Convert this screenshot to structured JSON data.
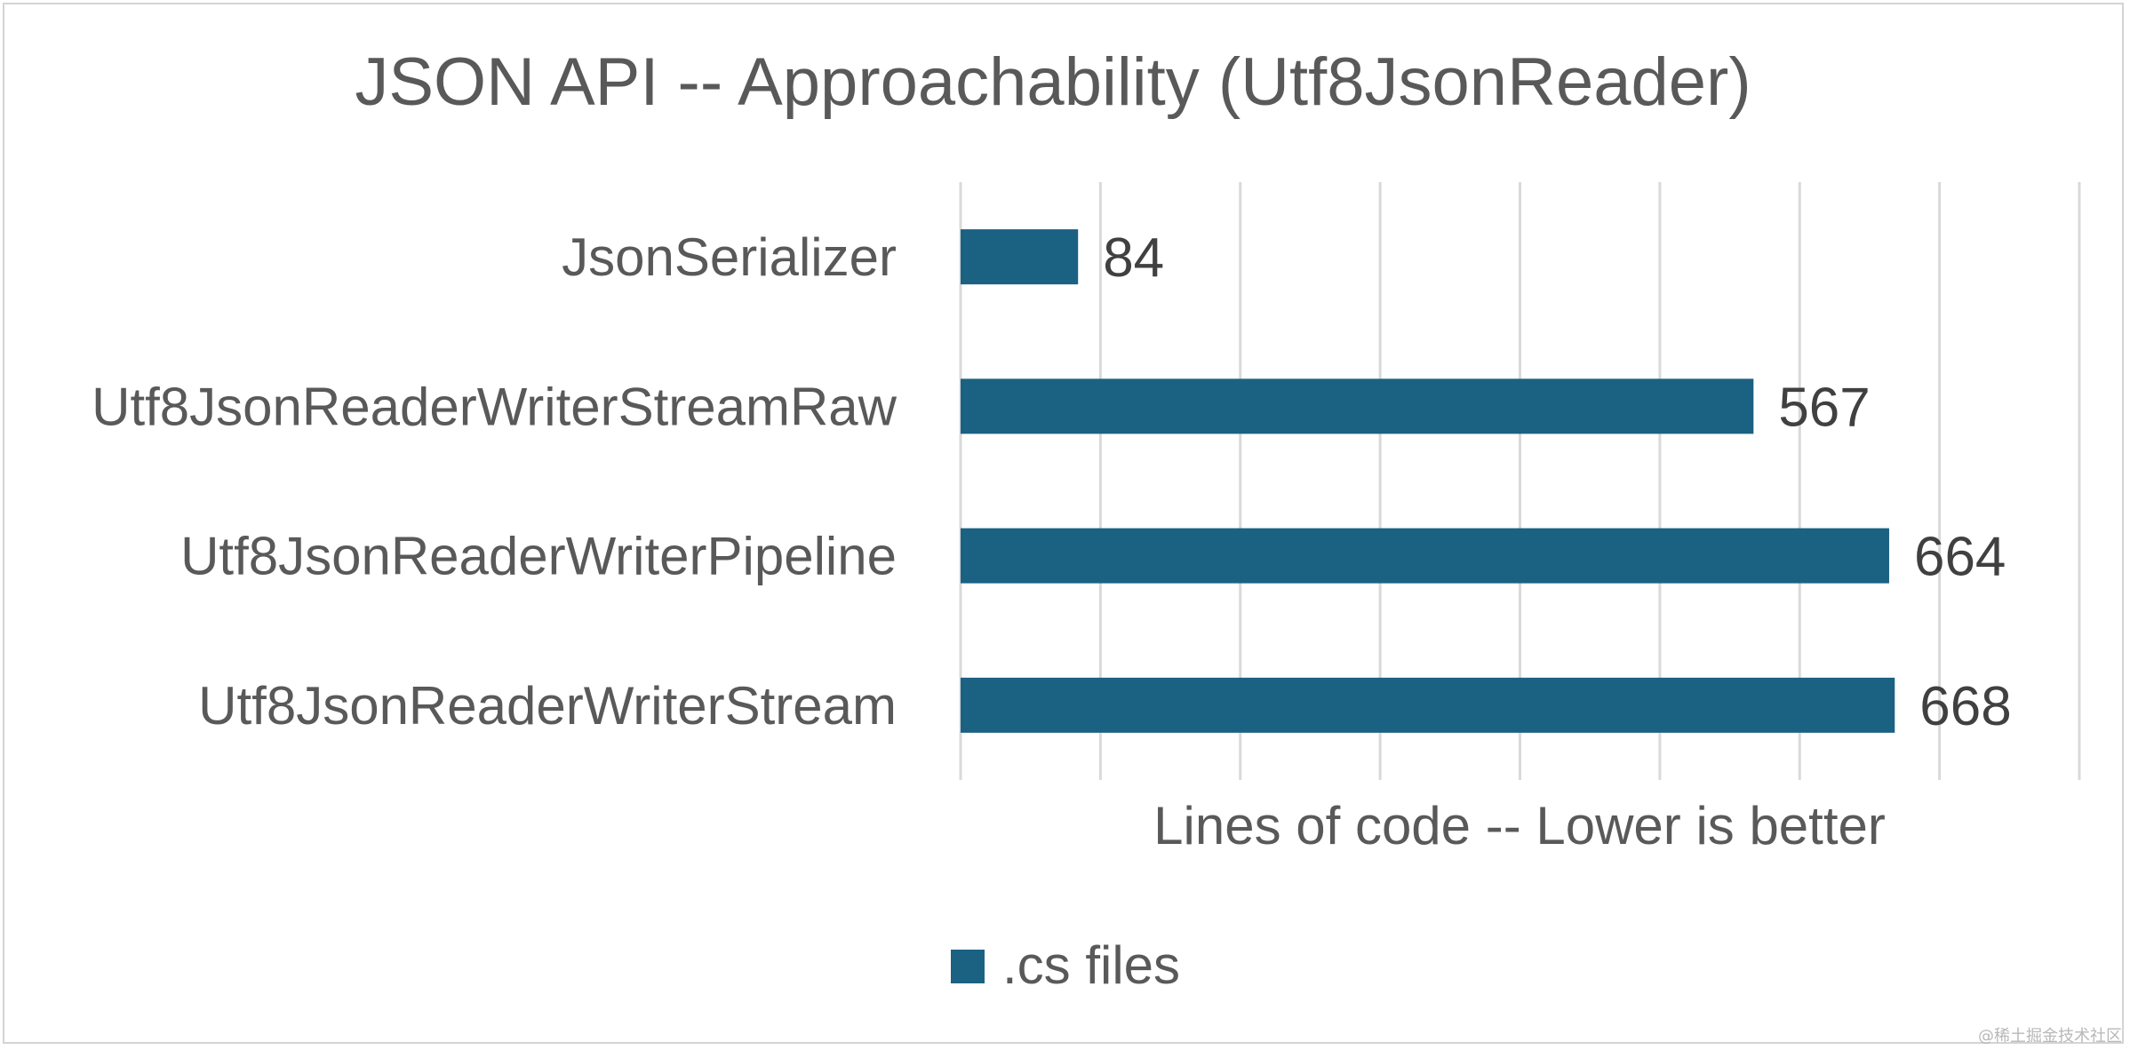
{
  "chart_data": {
    "type": "bar",
    "orientation": "horizontal",
    "title": "JSON API -- Approachability (Utf8JsonReader)",
    "categories": [
      "JsonSerializer",
      "Utf8JsonReaderWriterStreamRaw",
      "Utf8JsonReaderWriterPipeline",
      "Utf8JsonReaderWriterStream"
    ],
    "series": [
      {
        "name": ".cs files",
        "values": [
          84,
          567,
          664,
          668
        ],
        "color": "#1b6182"
      }
    ],
    "xlabel": "Lines of code -- Lower is better",
    "xlim": [
      0,
      800
    ],
    "grid": true,
    "legend_position": "bottom"
  },
  "watermark": "@稀土掘金技术社区"
}
